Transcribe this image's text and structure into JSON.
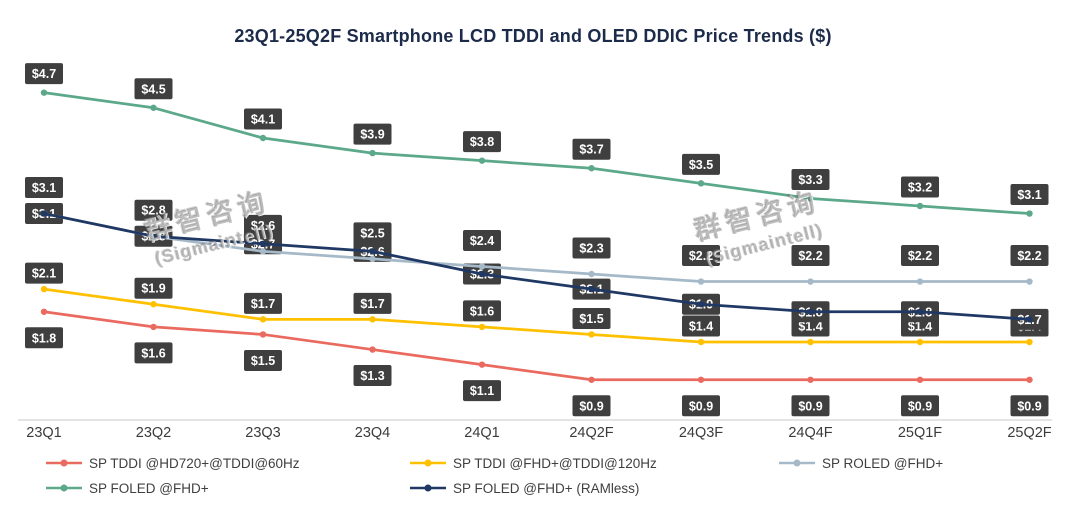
{
  "title": "23Q1-25Q2F Smartphone LCD TDDI and OLED DDIC Price Trends ($)",
  "watermarks": [
    {
      "line1": "群智咨询",
      "line2": "(Sigmaintell)"
    },
    {
      "line1": "群智咨询",
      "line2": "(Sigmaintell)"
    }
  ],
  "chart_data": {
    "type": "line",
    "title": "23Q1-25Q2F Smartphone LCD TDDI and OLED DDIC Price Trends ($)",
    "categories": [
      "23Q1",
      "23Q2",
      "23Q3",
      "23Q4",
      "24Q1",
      "24Q2F",
      "24Q3F",
      "24Q4F",
      "25Q1F",
      "25Q2F"
    ],
    "ylim": [
      0.5,
      5.0
    ],
    "grid": false,
    "legend_position": "bottom",
    "currency_prefix": "$",
    "label_box_color": "#3f3f3f",
    "label_text_color": "#ffffff",
    "axis_color": "#c9c9c9",
    "series": [
      {
        "name": "SP TDDI @HD720+@TDDI@60Hz",
        "color": "#ea6a5f",
        "values": [
          1.8,
          1.6,
          1.5,
          1.3,
          1.1,
          0.9,
          0.9,
          0.9,
          0.9,
          0.9
        ],
        "label_dy": 26
      },
      {
        "name": "SP TDDI @FHD+@TDDI@120Hz",
        "color": "#ffc000",
        "values": [
          2.1,
          1.9,
          1.7,
          1.7,
          1.6,
          1.5,
          1.4,
          1.4,
          1.4,
          1.4
        ],
        "label_dy": -16
      },
      {
        "name": "SP ROLED @FHD+",
        "color": "#a6b9c8",
        "values": [
          3.1,
          2.8,
          2.6,
          2.5,
          2.4,
          2.3,
          2.2,
          2.2,
          2.2,
          2.2
        ],
        "label_dy": -26
      },
      {
        "name": "SP FOLED @FHD+",
        "color": "#5ca88a",
        "values": [
          4.7,
          4.5,
          4.1,
          3.9,
          3.8,
          3.7,
          3.5,
          3.3,
          3.2,
          3.1
        ],
        "label_dy": -19
      },
      {
        "name": "SP FOLED @FHD+ (RAMless)",
        "color": "#1f3864",
        "values": [
          3.1,
          2.8,
          2.7,
          2.6,
          2.3,
          2.1,
          1.9,
          1.8,
          1.8,
          1.7
        ],
        "label_dy": 0
      }
    ]
  }
}
